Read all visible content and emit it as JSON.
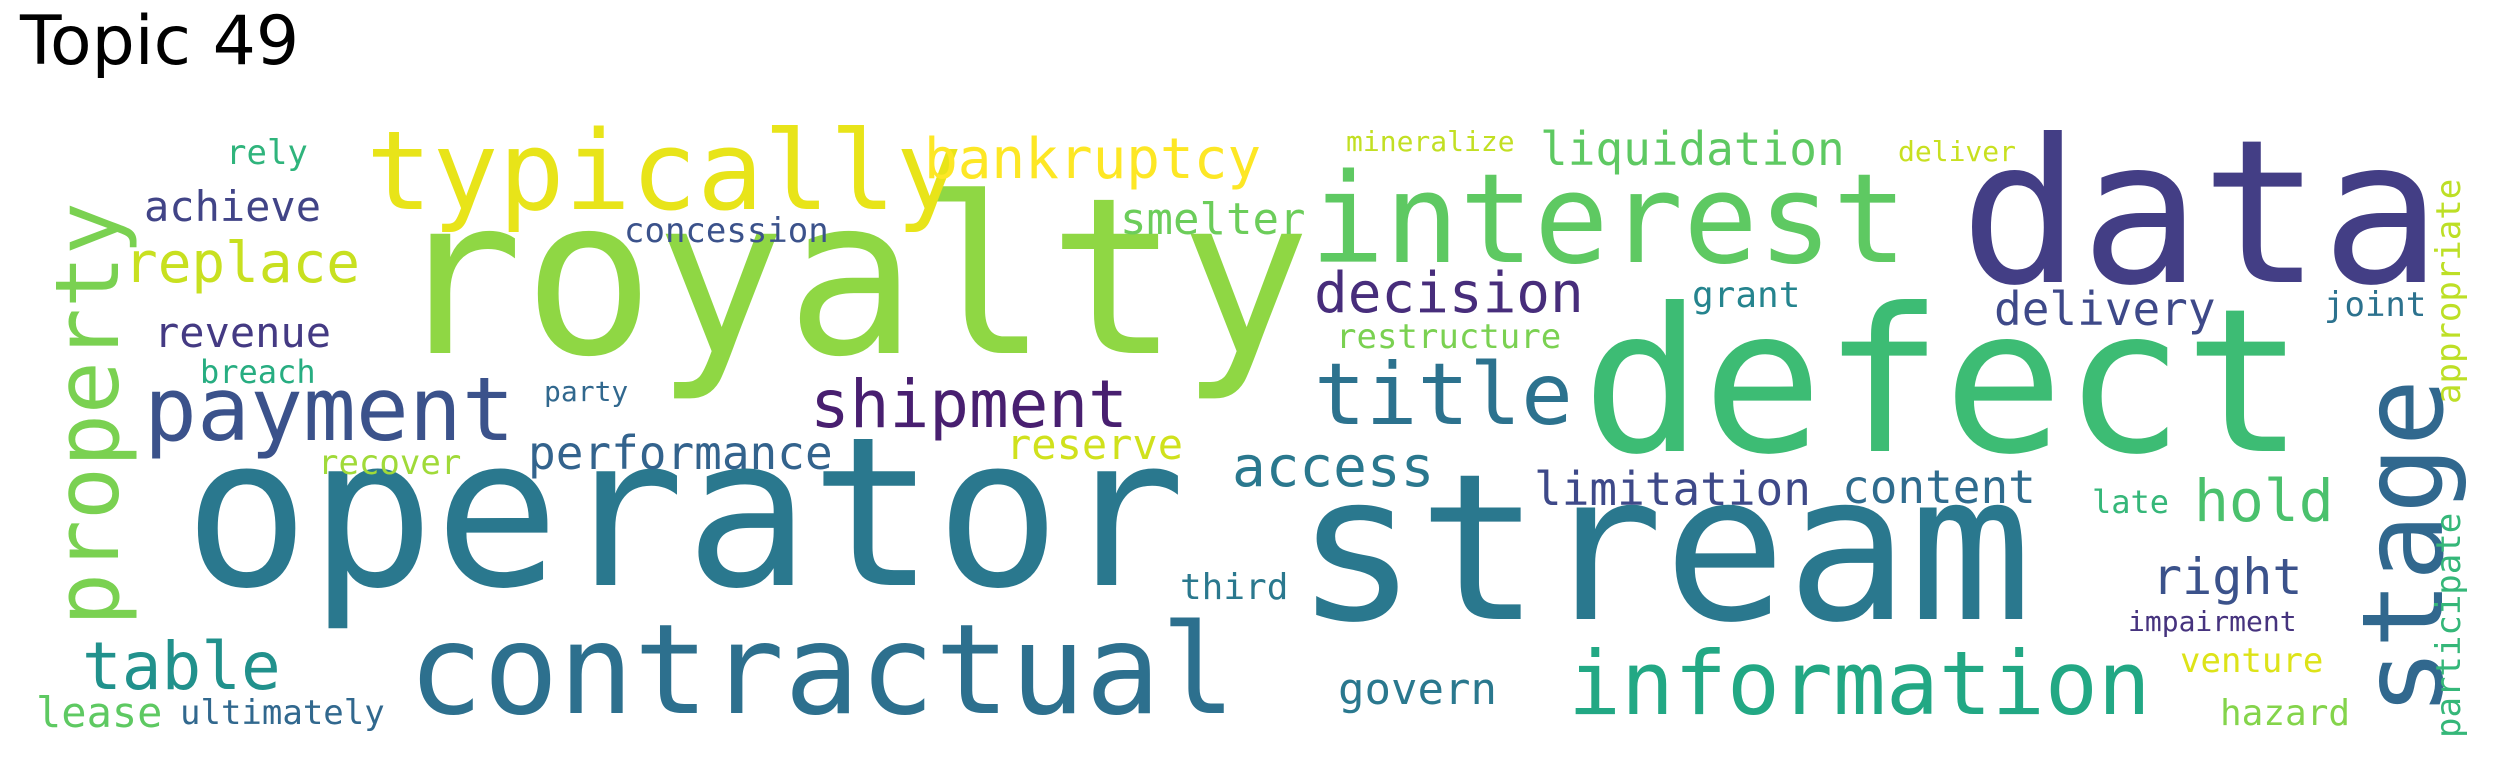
{
  "title": "Topic 49",
  "words": [
    {
      "text": "royalty",
      "color": "#8fd744"
    },
    {
      "text": "operator",
      "color": "#2a788e"
    },
    {
      "text": "stream",
      "color": "#2a788e"
    },
    {
      "text": "defect",
      "color": "#3dbc74"
    },
    {
      "text": "data",
      "color": "#433e85"
    },
    {
      "text": "contractual",
      "color": "#2d708e"
    },
    {
      "text": "interest",
      "color": "#5ec962"
    },
    {
      "text": "typically",
      "color": "#e8e419"
    },
    {
      "text": "information",
      "color": "#22a884"
    },
    {
      "text": "stage",
      "color": "#31688e"
    },
    {
      "text": "property",
      "color": "#7ad151"
    },
    {
      "text": "payment",
      "color": "#3b528b"
    },
    {
      "text": "title",
      "color": "#2c728e"
    },
    {
      "text": "shipment",
      "color": "#481f70"
    },
    {
      "text": "table",
      "color": "#21918c"
    },
    {
      "text": "bankruptcy",
      "color": "#fde725"
    },
    {
      "text": "decision",
      "color": "#472d7b"
    },
    {
      "text": "replace",
      "color": "#c8e020"
    },
    {
      "text": "access",
      "color": "#2a788e"
    },
    {
      "text": "hold",
      "color": "#4ac16d"
    },
    {
      "text": "liquidation",
      "color": "#5ec962"
    },
    {
      "text": "performance",
      "color": "#33638d"
    },
    {
      "text": "limitation",
      "color": "#3e4989"
    },
    {
      "text": "content",
      "color": "#2f6c8e"
    },
    {
      "text": "right",
      "color": "#3b528b"
    },
    {
      "text": "delivery",
      "color": "#3e4989"
    },
    {
      "text": "revenue",
      "color": "#443a83"
    },
    {
      "text": "achieve",
      "color": "#414487"
    },
    {
      "text": "smelter",
      "color": "#6ccd5a"
    },
    {
      "text": "govern",
      "color": "#2a788e"
    },
    {
      "text": "concession",
      "color": "#3b528b"
    },
    {
      "text": "reserve",
      "color": "#d0e11c"
    },
    {
      "text": "lease",
      "color": "#5ec962"
    },
    {
      "text": "ultimately",
      "color": "#31688e"
    },
    {
      "text": "restructure",
      "color": "#7ad151"
    },
    {
      "text": "grant",
      "color": "#25848e"
    },
    {
      "text": "appropriate",
      "color": "#bddf26"
    },
    {
      "text": "participate",
      "color": "#35b779"
    },
    {
      "text": "joint",
      "color": "#2c728e"
    },
    {
      "text": "third",
      "color": "#2a788e"
    },
    {
      "text": "venture",
      "color": "#dde318"
    },
    {
      "text": "hazard",
      "color": "#84d44b"
    },
    {
      "text": "recover",
      "color": "#a0da39"
    },
    {
      "text": "breach",
      "color": "#27ad81"
    },
    {
      "text": "party",
      "color": "#31688e"
    },
    {
      "text": "rely",
      "color": "#2fb47c"
    },
    {
      "text": "mineralize",
      "color": "#c2df23"
    },
    {
      "text": "deliver",
      "color": "#c8e020"
    },
    {
      "text": "late",
      "color": "#35b779"
    },
    {
      "text": "impairment",
      "color": "#46337e"
    }
  ]
}
